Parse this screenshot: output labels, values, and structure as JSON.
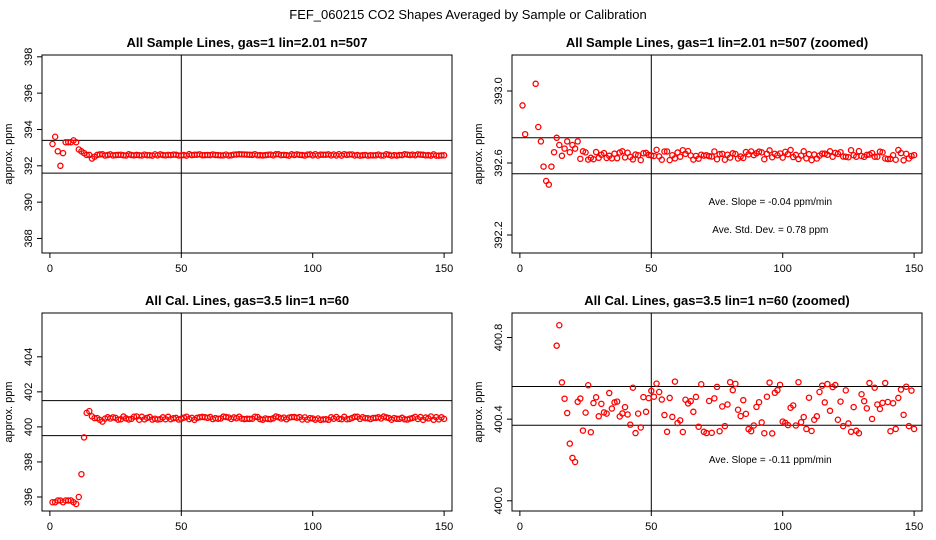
{
  "page": {
    "supertitle": "FEF_060215  CO2 Shapes Averaged by Sample or Calibration"
  },
  "chart_data": [
    {
      "type": "scatter",
      "id": "p1",
      "title": "All Sample Lines, gas=1 lin=2.01 n=507",
      "ylabel": "approx. ppm",
      "xlim": [
        -3,
        153
      ],
      "ylim": [
        387.2,
        398.1
      ],
      "xticks": [
        0,
        50,
        100,
        150
      ],
      "yticks": [
        388,
        390,
        392,
        394,
        396,
        398
      ],
      "xtick_labels": [
        "0",
        "50",
        "100",
        "150"
      ],
      "ytick_labels": [
        "388",
        "390",
        "392",
        "394",
        "396",
        "398"
      ],
      "hlines": [
        393.4,
        391.6
      ],
      "vlines": [
        50
      ],
      "annotations": [],
      "x": [],
      "y": [],
      "series_spec": {
        "n": 150,
        "baseline": 392.6,
        "jitter": 0.04,
        "head": [
          393.2,
          393.6,
          392.8,
          392.0,
          392.7,
          393.3,
          393.3,
          393.3,
          393.4,
          393.3,
          392.9,
          392.8,
          392.7,
          392.6,
          392.6,
          392.4,
          392.5,
          392.6
        ]
      }
    },
    {
      "type": "scatter",
      "id": "p2",
      "title": "All Sample Lines, gas=1 lin=2.01 n=507 (zoomed)",
      "ylabel": "approx. ppm",
      "xlim": [
        -3,
        153
      ],
      "ylim": [
        392.1,
        393.2
      ],
      "xticks": [
        0,
        50,
        100,
        150
      ],
      "yticks": [
        392.2,
        392.6,
        393.0
      ],
      "xtick_labels": [
        "0",
        "50",
        "100",
        "150"
      ],
      "ytick_labels": [
        "392.2",
        "392.6",
        "393.0"
      ],
      "hlines": [
        392.74,
        392.54
      ],
      "vlines": [
        50
      ],
      "annotations": [
        "Ave. Slope =  -0.04  ppm/min",
        "Ave. Std. Dev. =  0.78  ppm"
      ],
      "x": [],
      "y": [],
      "series_spec": {
        "n": 150,
        "baseline": 392.645,
        "jitter": 0.03,
        "head": [
          392.92,
          392.76,
          null,
          null,
          null,
          393.04,
          392.8,
          392.72,
          392.58,
          392.5,
          392.48,
          392.58,
          392.66,
          392.74,
          392.7,
          392.64,
          392.68,
          392.72,
          392.66,
          392.7,
          392.68,
          392.72
        ]
      }
    },
    {
      "type": "scatter",
      "id": "p3",
      "title": "All Cal. Lines, gas=3.5 lin=1 n=60",
      "ylabel": "approx. ppm",
      "xlim": [
        -3,
        153
      ],
      "ylim": [
        395.2,
        406.5
      ],
      "xticks": [
        0,
        50,
        100,
        150
      ],
      "yticks": [
        396,
        398,
        400,
        402,
        404
      ],
      "xtick_labels": [
        "0",
        "50",
        "100",
        "150"
      ],
      "ytick_labels": [
        "396",
        "398",
        "400",
        "402",
        "404"
      ],
      "hlines": [
        401.5,
        399.5
      ],
      "vlines": [
        50
      ],
      "annotations": [],
      "x": [],
      "y": [],
      "series_spec": {
        "n": 150,
        "baseline": 400.5,
        "jitter": 0.1,
        "head": [
          395.7,
          395.7,
          395.8,
          395.8,
          395.7,
          395.8,
          395.8,
          395.8,
          395.7,
          395.6,
          396.0,
          397.3,
          399.4,
          400.8,
          400.9,
          400.6,
          400.5,
          400.5,
          400.4,
          400.3
        ]
      }
    },
    {
      "type": "scatter",
      "id": "p4",
      "title": "All Cal. Lines, gas=3.5 lin=1 n=60 (zoomed)",
      "ylabel": "approx. ppm",
      "xlim": [
        -3,
        153
      ],
      "ylim": [
        399.95,
        400.92
      ],
      "xticks": [
        0,
        50,
        100,
        150
      ],
      "yticks": [
        400.0,
        400.4,
        400.8
      ],
      "xtick_labels": [
        "0",
        "50",
        "100",
        "150"
      ],
      "ytick_labels": [
        "400.0",
        "400.4",
        "400.8"
      ],
      "hlines": [
        400.56,
        400.37
      ],
      "vlines": [
        50
      ],
      "annotations": [
        "Ave. Slope =  -0.11  ppm/min"
      ],
      "x": [],
      "y": [],
      "series_spec": {
        "n": 150,
        "baseline": 400.46,
        "jitter": 0.13,
        "head": [
          null,
          null,
          null,
          null,
          null,
          null,
          null,
          null,
          null,
          null,
          null,
          null,
          null,
          400.76,
          400.86,
          400.58,
          400.5,
          400.43,
          400.28,
          400.21,
          400.19
        ]
      }
    }
  ]
}
